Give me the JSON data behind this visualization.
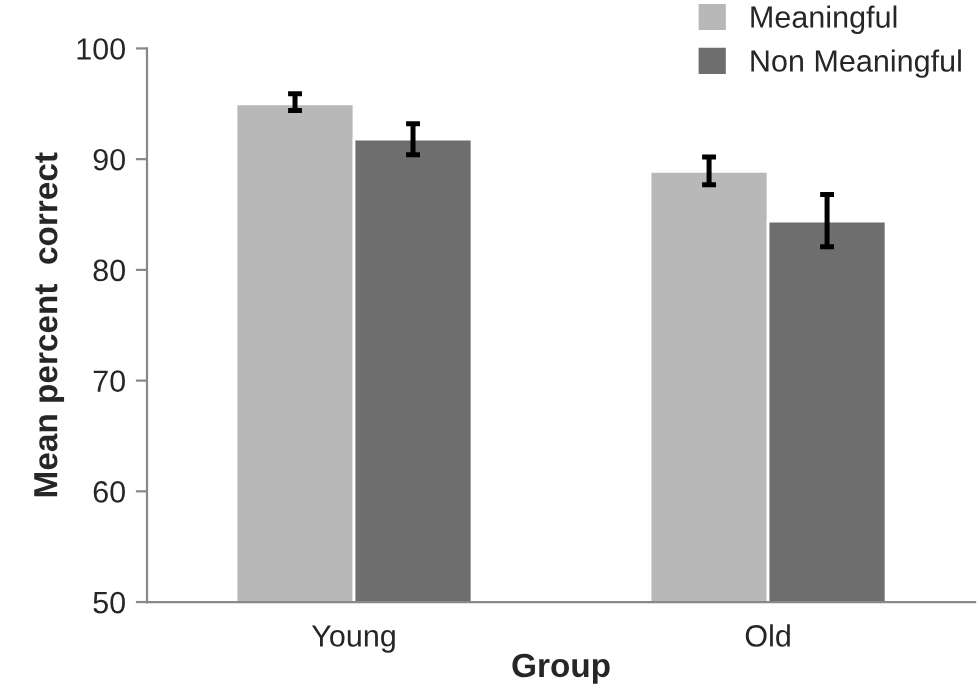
{
  "chart_data": {
    "type": "bar",
    "xlabel": "Group",
    "ylabel": "Mean percent  correct",
    "categories": [
      "Young",
      "Old"
    ],
    "series": [
      {
        "name": "Meaningful",
        "color": "#b8b8b8",
        "values": [
          95.0,
          88.9
        ],
        "errors": [
          [
            94.4,
            95.9
          ],
          [
            87.7,
            90.2
          ]
        ]
      },
      {
        "name": "Non Meaningful",
        "color": "#6e6e6e",
        "values": [
          91.8,
          84.4
        ],
        "errors": [
          [
            90.4,
            93.2
          ],
          [
            82.1,
            86.8
          ]
        ]
      }
    ],
    "ylim": [
      50,
      100
    ],
    "yticks": [
      50,
      60,
      70,
      80,
      90,
      100
    ],
    "grid": false,
    "legend": "top right"
  }
}
